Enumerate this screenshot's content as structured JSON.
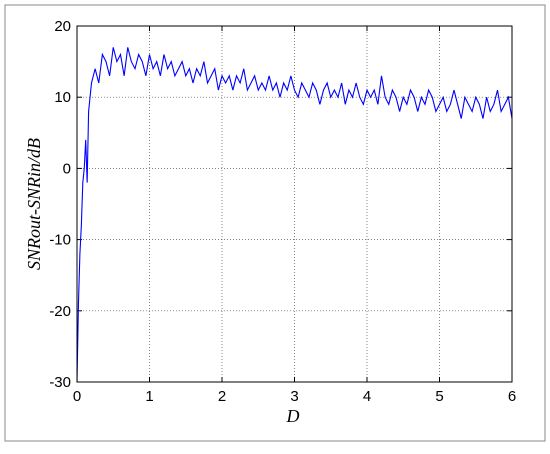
{
  "chart_data": {
    "type": "line",
    "xlabel": "D",
    "ylabel": "SNRout-SNRin/dB",
    "x": [
      0,
      0.02,
      0.04,
      0.06,
      0.08,
      0.1,
      0.12,
      0.14,
      0.16,
      0.18,
      0.2,
      0.25,
      0.3,
      0.35,
      0.4,
      0.45,
      0.5,
      0.55,
      0.6,
      0.65,
      0.7,
      0.75,
      0.8,
      0.85,
      0.9,
      0.95,
      1,
      1.05,
      1.1,
      1.15,
      1.2,
      1.25,
      1.3,
      1.35,
      1.4,
      1.45,
      1.5,
      1.55,
      1.6,
      1.65,
      1.7,
      1.75,
      1.8,
      1.85,
      1.9,
      1.95,
      2,
      2.05,
      2.1,
      2.15,
      2.2,
      2.25,
      2.3,
      2.35,
      2.4,
      2.45,
      2.5,
      2.55,
      2.6,
      2.65,
      2.7,
      2.75,
      2.8,
      2.85,
      2.9,
      2.95,
      3,
      3.05,
      3.1,
      3.15,
      3.2,
      3.25,
      3.3,
      3.35,
      3.4,
      3.45,
      3.5,
      3.55,
      3.6,
      3.65,
      3.7,
      3.75,
      3.8,
      3.85,
      3.9,
      3.95,
      4,
      4.05,
      4.1,
      4.15,
      4.2,
      4.25,
      4.3,
      4.35,
      4.4,
      4.45,
      4.5,
      4.55,
      4.6,
      4.65,
      4.7,
      4.75,
      4.8,
      4.85,
      4.9,
      4.95,
      5,
      5.05,
      5.1,
      5.15,
      5.2,
      5.25,
      5.3,
      5.35,
      5.4,
      5.45,
      5.5,
      5.55,
      5.6,
      5.65,
      5.7,
      5.75,
      5.8,
      5.85,
      5.9,
      5.95,
      6
    ],
    "series": [
      {
        "color": "#0000ff",
        "values": [
          -30,
          -19,
          -12,
          -8,
          -2,
          0,
          4,
          -2,
          8,
          10,
          12,
          14,
          12,
          16,
          15,
          13,
          17,
          15,
          16,
          13,
          17,
          15,
          14,
          16,
          15,
          13,
          16,
          14,
          15,
          13,
          16,
          14,
          15,
          13,
          14,
          15,
          13,
          14,
          12,
          14,
          13,
          15,
          12,
          13,
          14,
          11,
          13,
          12,
          13,
          11,
          13,
          12,
          14,
          11,
          12,
          13,
          11,
          12,
          11,
          13,
          11,
          12,
          10,
          12,
          11,
          13,
          11,
          10,
          12,
          11,
          10,
          12,
          11,
          9,
          11,
          12,
          10,
          11,
          10,
          12,
          9,
          11,
          10,
          12,
          10,
          9,
          11,
          10,
          11,
          9,
          13,
          10,
          9,
          11,
          10,
          8,
          10,
          9,
          11,
          10,
          8,
          10,
          9,
          11,
          10,
          8,
          9,
          10,
          8,
          9,
          11,
          9,
          7,
          10,
          9,
          8,
          10,
          9,
          7,
          10,
          8,
          9,
          11,
          8,
          9,
          10,
          7
        ]
      }
    ],
    "xlim": [
      0,
      6
    ],
    "xticks": [
      0,
      1,
      2,
      3,
      4,
      5,
      6
    ],
    "ylim": [
      -30,
      20
    ],
    "yticks": [
      -30,
      -20,
      -10,
      0,
      10,
      20
    ],
    "grid": true
  }
}
